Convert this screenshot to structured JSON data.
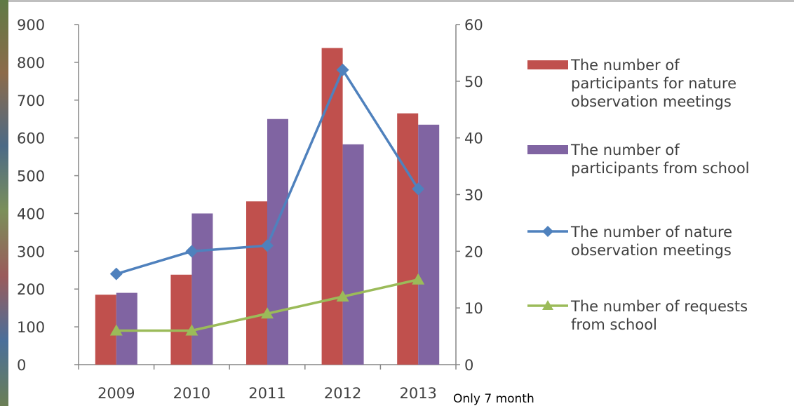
{
  "chart_data": {
    "type": "bar",
    "categories": [
      "2009",
      "2010",
      "2011",
      "2012",
      "2013"
    ],
    "category_note": "Only 7 month",
    "left_axis": {
      "ylim": [
        0,
        900
      ],
      "ticks": [
        "0",
        "100",
        "200",
        "300",
        "400",
        "500",
        "600",
        "700",
        "800",
        "900"
      ]
    },
    "right_axis": {
      "ylim": [
        0,
        60
      ],
      "ticks": [
        "0",
        "10",
        "20",
        "30",
        "40",
        "50",
        "60"
      ]
    },
    "grid": false,
    "legend_position": "right",
    "series": [
      {
        "name": "The number of participants for nature observation meetings",
        "name_lines": [
          "The number of",
          "participants for nature",
          "observation meetings"
        ],
        "kind": "bar",
        "axis": "left",
        "color": "#c0504d",
        "values": [
          185,
          238,
          432,
          838,
          665
        ]
      },
      {
        "name": "The number of participants from school",
        "name_lines": [
          "The number of",
          "participants from school"
        ],
        "kind": "bar",
        "axis": "left",
        "color": "#8064a2",
        "values": [
          190,
          400,
          650,
          583,
          635
        ]
      },
      {
        "name": "The number of nature observation meetings",
        "name_lines": [
          "The number of nature",
          "observation meetings"
        ],
        "kind": "line",
        "axis": "right",
        "color": "#4f81bd",
        "marker": "diamond",
        "values": [
          16,
          20,
          21,
          52,
          31
        ]
      },
      {
        "name": "The number of requests from school",
        "name_lines": [
          "The number of requests",
          "from school"
        ],
        "kind": "line",
        "axis": "right",
        "color": "#9bbb59",
        "marker": "triangle",
        "values": [
          6,
          6,
          9,
          12,
          15
        ]
      }
    ]
  }
}
